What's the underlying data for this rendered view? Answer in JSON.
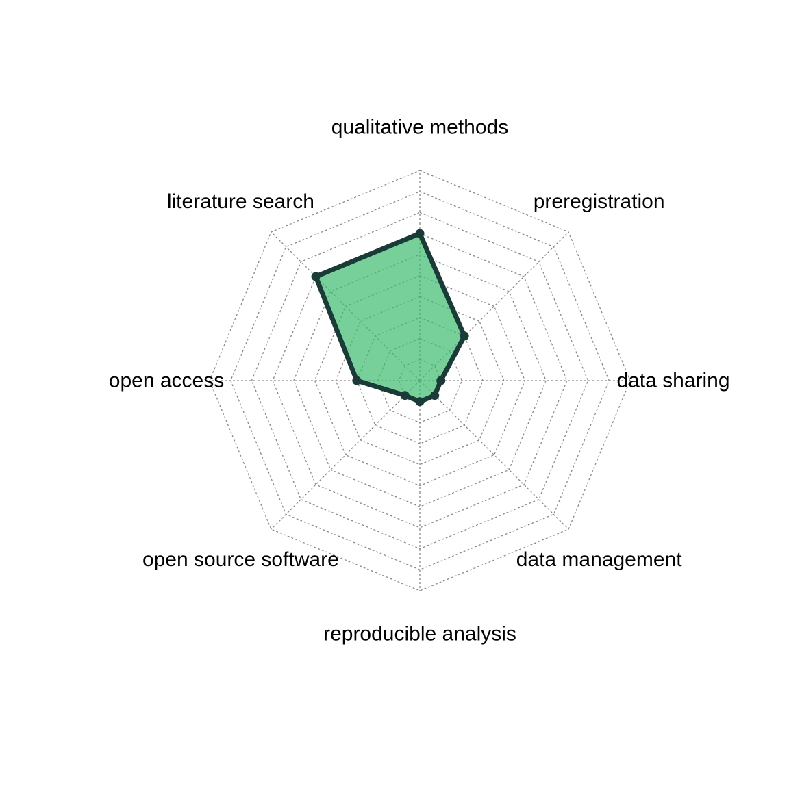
{
  "chart_data": {
    "type": "radar",
    "title": "",
    "axes": [
      "qualitative methods",
      "preregistration",
      "data sharing",
      "data management",
      "reproducible analysis",
      "open source software",
      "open access",
      "literature search"
    ],
    "series": [
      {
        "values": [
          7,
          3,
          1,
          1,
          1,
          1,
          3,
          7
        ]
      }
    ],
    "range": [
      0,
      10
    ],
    "grid_levels": 10,
    "grid": true,
    "grid_style": "dotted",
    "legend": "none",
    "colors": {
      "fill": "#3dba6f",
      "fill_opacity": 0.7,
      "line": "#1a3b38",
      "grid": "#8a8a8a",
      "label": "#000000"
    }
  }
}
